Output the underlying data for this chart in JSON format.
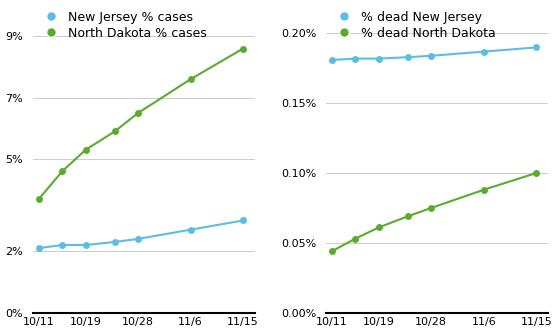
{
  "x_labels": [
    "10/11",
    "10/19",
    "10/28",
    "11/6",
    "11/15"
  ],
  "x_tick_positions": [
    0,
    8,
    17,
    26,
    35
  ],
  "left": {
    "legend": [
      "New Jersey % cases",
      "North Dakota % cases"
    ],
    "nj_x": [
      0,
      4,
      8,
      13,
      17,
      26,
      35
    ],
    "nd_x": [
      0,
      4,
      8,
      13,
      17,
      26,
      35
    ],
    "nj_cases": [
      0.021,
      0.022,
      0.022,
      0.023,
      0.024,
      0.027,
      0.03
    ],
    "nd_cases": [
      0.037,
      0.046,
      0.053,
      0.059,
      0.065,
      0.076,
      0.086
    ],
    "yticks": [
      0.0,
      0.02,
      0.05,
      0.07,
      0.09
    ],
    "ylim": [
      0,
      0.1
    ]
  },
  "right": {
    "legend": [
      "% dead New Jersey",
      "% dead North Dakota"
    ],
    "nj_x": [
      0,
      4,
      8,
      13,
      17,
      26,
      35
    ],
    "nd_x": [
      0,
      4,
      8,
      13,
      17,
      26,
      35
    ],
    "nj_dead": [
      0.00181,
      0.00182,
      0.00182,
      0.00183,
      0.00184,
      0.00187,
      0.0019
    ],
    "nd_dead": [
      0.00044,
      0.00053,
      0.00061,
      0.00069,
      0.00075,
      0.00088,
      0.001
    ],
    "yticks": [
      0.0,
      0.0005,
      0.001,
      0.0015,
      0.002
    ],
    "ylim": [
      0,
      0.0022
    ]
  },
  "blue_color": "#5bbde4",
  "green_color": "#5aab2e",
  "bg_color": "#ffffff",
  "marker": "o",
  "markersize": 5,
  "linewidth": 1.5,
  "legend_fontsize": 9,
  "tick_fontsize": 8,
  "xlim": [
    -1,
    37
  ]
}
